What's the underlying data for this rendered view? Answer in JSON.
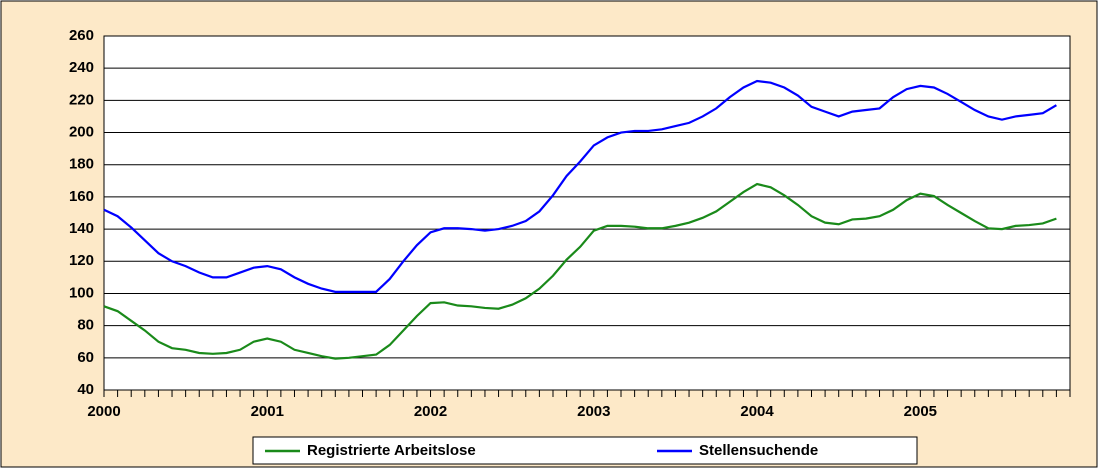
{
  "chart_data": {
    "type": "line",
    "categories": [
      "2000",
      null,
      null,
      null,
      null,
      null,
      null,
      null,
      null,
      null,
      null,
      null,
      "2001",
      null,
      null,
      null,
      null,
      null,
      null,
      null,
      null,
      null,
      null,
      null,
      "2002",
      null,
      null,
      null,
      null,
      null,
      null,
      null,
      null,
      null,
      null,
      null,
      "2003",
      null,
      null,
      null,
      null,
      null,
      null,
      null,
      null,
      null,
      null,
      null,
      "2004",
      null,
      null,
      null,
      null,
      null,
      null,
      null,
      null,
      null,
      null,
      null,
      "2005",
      null,
      null,
      null,
      null,
      null,
      null,
      null,
      null,
      null,
      null
    ],
    "series": [
      {
        "name": "Registrierte Arbeitslose",
        "color": "#1a8a1a",
        "values": [
          92,
          89,
          83,
          77,
          70,
          66,
          65,
          63,
          62.5,
          63,
          65,
          70,
          72,
          70,
          65,
          63,
          61,
          59.5,
          60,
          61,
          62,
          68,
          77,
          86,
          94,
          94.5,
          92.5,
          92,
          91,
          90.5,
          93,
          97,
          103,
          111,
          121,
          129,
          139,
          142,
          142,
          141.5,
          140.5,
          140.5,
          142,
          144,
          147,
          151,
          157,
          163,
          168,
          166,
          161,
          155,
          148,
          144,
          143,
          146,
          146.5,
          148,
          152,
          158,
          162,
          160.5,
          155,
          150,
          145,
          140.5,
          140,
          142,
          142.5,
          143.5,
          146.5
        ]
      },
      {
        "name": "Stellensuchende",
        "color": "#0000ff",
        "values": [
          152,
          148,
          141,
          133,
          125,
          120,
          117,
          113,
          110,
          110,
          113,
          116,
          117,
          115,
          110,
          106,
          103,
          101,
          101,
          101,
          101,
          109,
          120,
          130,
          138,
          140.5,
          140.5,
          140,
          139,
          140,
          142,
          145,
          151,
          161,
          173,
          182,
          192,
          197,
          200,
          201,
          201,
          202,
          204,
          206,
          210,
          215,
          222,
          228,
          232,
          231,
          228,
          223,
          216,
          213,
          210,
          213,
          214,
          215,
          222,
          227,
          229,
          228,
          224,
          219,
          214,
          210,
          208,
          210,
          211,
          212,
          217
        ]
      }
    ],
    "ylim": [
      40,
      260
    ],
    "yticks": [
      40,
      60,
      80,
      100,
      120,
      140,
      160,
      180,
      200,
      220,
      240,
      260
    ],
    "grid": true
  }
}
